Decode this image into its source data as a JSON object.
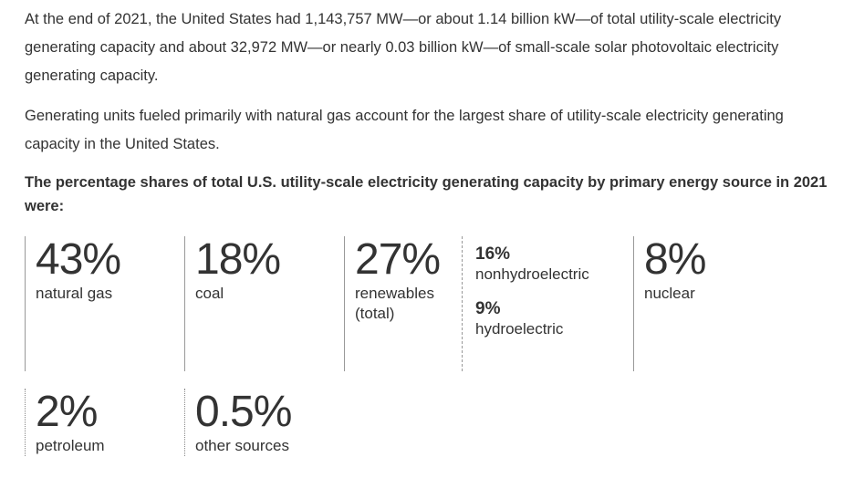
{
  "article": {
    "intro_paragraph": "At the end of 2021, the United States had 1,143,757 MW—or about 1.14 billion kW—of total utility-scale electricity generating capacity and about 32,972 MW—or nearly 0.03 billion kW—of small-scale solar photovoltaic electricity generating capacity.",
    "second_paragraph": "Generating units fueled primarily with natural gas account for the largest share of utility-scale electricity generating capacity in the United States.",
    "stats_heading": "The percentage shares of total U.S. utility-scale electricity generating capacity by primary energy source in 2021 were:"
  },
  "stats": {
    "row1": [
      {
        "value": "43%",
        "label": "natural gas",
        "border_style": "solid"
      },
      {
        "value": "18%",
        "label": "coal",
        "border_style": "solid"
      },
      {
        "value": "27%",
        "label": "renewables (total)",
        "border_style": "solid"
      },
      {
        "border_style": "dashed",
        "items": [
          {
            "value": "16%",
            "label": "nonhydroelectric"
          },
          {
            "value": "9%",
            "label": "hydroelectric"
          }
        ]
      },
      {
        "value": "8%",
        "label": "nuclear",
        "border_style": "solid"
      }
    ],
    "row2": [
      {
        "value": "2%",
        "label": "petroleum",
        "border_style": "dotted"
      },
      {
        "value": "0.5%",
        "label": "other sources",
        "border_style": "dotted"
      }
    ]
  },
  "chart_data": {
    "type": "table",
    "title": "The percentage shares of total U.S. utility-scale electricity generating capacity by primary energy source in 2021 were:",
    "categories": [
      "natural gas",
      "coal",
      "renewables (total)",
      "nonhydroelectric",
      "hydroelectric",
      "nuclear",
      "petroleum",
      "other sources"
    ],
    "values": [
      43,
      18,
      27,
      16,
      9,
      8,
      2,
      0.5
    ],
    "unit": "%"
  },
  "colors": {
    "text": "#333333",
    "background": "#ffffff",
    "divider_solid": "#999999",
    "divider_dashed": "#999999",
    "divider_dotted": "#888888"
  }
}
